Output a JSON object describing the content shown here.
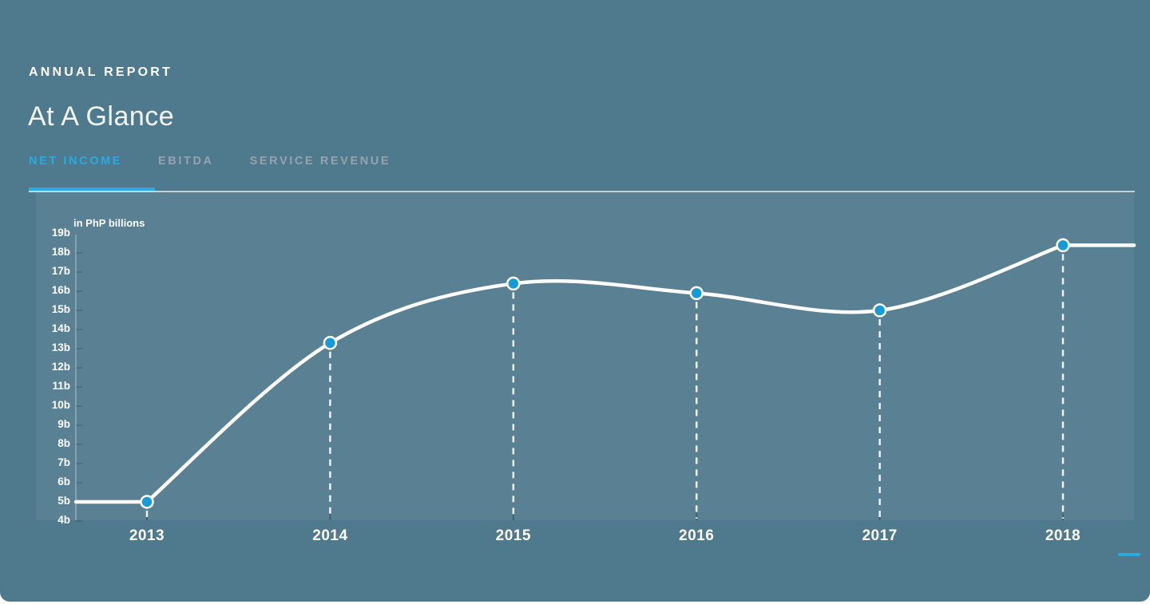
{
  "header": {
    "eyebrow": "ANNUAL REPORT",
    "title": "At A Glance"
  },
  "tabs": [
    {
      "label": "NET INCOME",
      "active": true
    },
    {
      "label": "EBITDA",
      "active": false
    },
    {
      "label": "SERVICE REVENUE",
      "active": false
    }
  ],
  "chart_data": {
    "type": "line",
    "title": "Net Income At A Glance",
    "unit_label": "in PhP billions",
    "categories": [
      "2013",
      "2014",
      "2015",
      "2016",
      "2017",
      "2018"
    ],
    "series": [
      {
        "name": "Net Income",
        "values": [
          5.0,
          13.3,
          16.4,
          15.9,
          15.0,
          18.4
        ]
      }
    ],
    "y_ticks": [
      "4b",
      "5b",
      "6b",
      "7b",
      "8b",
      "9b",
      "10b",
      "11b",
      "12b",
      "13b",
      "14b",
      "15b",
      "16b",
      "17b",
      "18b",
      "19b"
    ],
    "ylim": [
      4,
      19
    ],
    "xlabel": "",
    "ylabel": "PhP billions",
    "grid": false,
    "legend": "none",
    "line_color": "#ffffff",
    "marker_color": "#189ad6",
    "dropline_style": "dashed"
  },
  "colors": {
    "background": "#4f798d",
    "plot_overlay": "rgba(255,255,255,0.06)",
    "accent_blue": "#29abe2",
    "inactive_tab": "#94a4af",
    "line_white": "#ffffff",
    "marker_blue": "#189ad6"
  },
  "footer": {
    "indicator": "blue-dash"
  }
}
